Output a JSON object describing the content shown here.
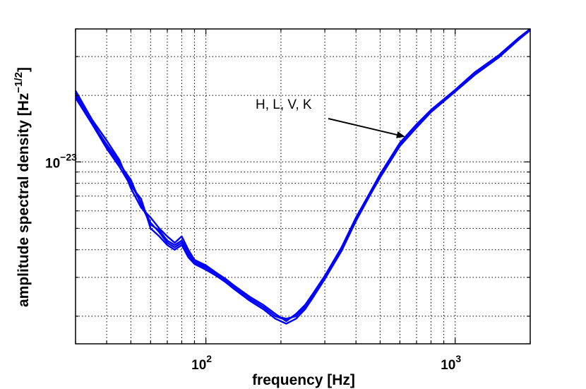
{
  "chart_data": {
    "type": "line",
    "title": "",
    "xlabel": "frequency [Hz]",
    "ylabel": "amplitude spectral density [Hz",
    "ylabel_exponent": "−1/2",
    "ylabel_close": "]",
    "x_scale": "log",
    "y_scale": "log",
    "xlim": [
      30,
      2000
    ],
    "ylim": [
      1.5e-24,
      4e-23
    ],
    "grid": true,
    "x_tick_labels": [
      {
        "value": 100,
        "base": "10",
        "exp": "2"
      },
      {
        "value": 1000,
        "base": "10",
        "exp": "3"
      }
    ],
    "y_tick_labels": [
      {
        "value": 1e-23,
        "base": "10",
        "exp": "−23"
      }
    ],
    "series_color": "#0000ff",
    "annotation": {
      "text": "H, L, V, K",
      "points_to_x": 630,
      "points_to_y": 1.3e-23
    },
    "series": [
      {
        "x": [
          30,
          35,
          40,
          45,
          50,
          55,
          60,
          65,
          70,
          75,
          80,
          85,
          90,
          100,
          110,
          120,
          130,
          150,
          170,
          190,
          210,
          230,
          250,
          270,
          300,
          350,
          400,
          450,
          500,
          600,
          700,
          800,
          1000,
          1200,
          1500,
          1800,
          2000
        ],
        "y": [
          2e-23,
          1.5e-23,
          1.2e-23,
          1e-23,
          8e-24,
          6.5e-24,
          5.3e-24,
          4.8e-24,
          4.3e-24,
          4.1e-24,
          4.3e-24,
          3.8e-24,
          3.5e-24,
          3.3e-24,
          3.1e-24,
          2.9e-24,
          2.7e-24,
          2.4e-24,
          2.2e-24,
          2e-24,
          1.95e-24,
          2e-24,
          2.2e-24,
          2.5e-24,
          3e-24,
          4e-24,
          5.5e-24,
          7e-24,
          8.6e-24,
          1.2e-23,
          1.45e-23,
          1.7e-23,
          2.1e-23,
          2.5e-23,
          3e-23,
          3.6e-23,
          4e-23
        ]
      },
      {
        "x": [
          30,
          35,
          40,
          45,
          50,
          55,
          60,
          65,
          70,
          75,
          80,
          85,
          90,
          100,
          110,
          120,
          130,
          150,
          170,
          190,
          210,
          230,
          250,
          270,
          300,
          350,
          400,
          450,
          500,
          600,
          700,
          800,
          1000,
          1200,
          1500,
          1800,
          2000
        ],
        "y": [
          2.1e-23,
          1.55e-23,
          1.25e-23,
          1.02e-23,
          7.6e-24,
          6.2e-24,
          5.6e-24,
          5e-24,
          4.6e-24,
          4.3e-24,
          4.6e-24,
          4e-24,
          3.6e-24,
          3.4e-24,
          3.15e-24,
          2.95e-24,
          2.75e-24,
          2.45e-24,
          2.25e-24,
          2.05e-24,
          1.9e-24,
          2.05e-24,
          2.25e-24,
          2.55e-24,
          3.05e-24,
          4.1e-24,
          5.6e-24,
          7.1e-24,
          8.8e-24,
          1.22e-23,
          1.48e-23,
          1.72e-23,
          2.12e-23,
          2.55e-23,
          3.05e-23,
          3.65e-23,
          4e-23
        ]
      },
      {
        "x": [
          30,
          35,
          40,
          45,
          50,
          55,
          60,
          65,
          70,
          75,
          80,
          85,
          90,
          100,
          110,
          120,
          130,
          150,
          170,
          190,
          210,
          230,
          250,
          270,
          300,
          350,
          400,
          450,
          500,
          600,
          700,
          800,
          1000,
          1200,
          1500,
          1800,
          2000
        ],
        "y": [
          1.95e-23,
          1.48e-23,
          1.15e-23,
          9.5e-24,
          7.8e-24,
          6.8e-24,
          5e-24,
          4.6e-24,
          4.2e-24,
          4e-24,
          4.2e-24,
          3.7e-24,
          3.45e-24,
          3.25e-24,
          3.05e-24,
          2.85e-24,
          2.65e-24,
          2.35e-24,
          2.15e-24,
          1.95e-24,
          1.85e-24,
          1.95e-24,
          2.15e-24,
          2.45e-24,
          2.95e-24,
          3.95e-24,
          5.4e-24,
          6.9e-24,
          8.5e-24,
          1.18e-23,
          1.43e-23,
          1.68e-23,
          2.08e-23,
          2.48e-23,
          2.98e-23,
          3.58e-23,
          3.95e-23
        ]
      },
      {
        "x": [
          30,
          35,
          40,
          45,
          50,
          55,
          60,
          65,
          70,
          75,
          80,
          85,
          90,
          100,
          110,
          120,
          130,
          150,
          170,
          190,
          210,
          230,
          250,
          270,
          300,
          350,
          400,
          450,
          500,
          600,
          700,
          800,
          1000,
          1200,
          1500,
          1800,
          2000
        ],
        "y": [
          2.05e-23,
          1.52e-23,
          1.18e-23,
          9.8e-24,
          8.3e-24,
          6.4e-24,
          5.2e-24,
          4.9e-24,
          4.4e-24,
          4.2e-24,
          4.4e-24,
          3.9e-24,
          3.55e-24,
          3.35e-24,
          3.1e-24,
          2.9e-24,
          2.7e-24,
          2.4e-24,
          2.2e-24,
          2e-24,
          1.92e-24,
          2.02e-24,
          2.2e-24,
          2.5e-24,
          3e-24,
          4.05e-24,
          5.5e-24,
          7.05e-24,
          8.7e-24,
          1.2e-23,
          1.46e-23,
          1.7e-23,
          2.1e-23,
          2.52e-23,
          3.02e-23,
          3.62e-23,
          4e-23
        ]
      }
    ]
  }
}
